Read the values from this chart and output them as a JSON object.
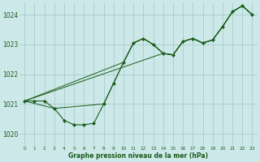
{
  "bg_color": "#cce8e8",
  "grid_color": "#aacccc",
  "line_color": "#1a5c1a",
  "marker_color": "#1a5c1a",
  "xlabel": "Graphe pression niveau de la mer (hPa)",
  "xlabel_color": "#1a5c1a",
  "ylim": [
    1019.6,
    1024.4
  ],
  "xlim": [
    -0.5,
    23.5
  ],
  "yticks": [
    1020,
    1021,
    1022,
    1023,
    1024
  ],
  "xticks": [
    0,
    1,
    2,
    3,
    4,
    5,
    6,
    7,
    8,
    9,
    10,
    11,
    12,
    13,
    14,
    15,
    16,
    17,
    18,
    19,
    20,
    21,
    22,
    23
  ],
  "main_x": [
    0,
    1,
    2,
    3,
    4,
    5,
    6,
    7,
    8,
    9,
    10,
    11,
    12,
    13,
    14,
    15,
    16,
    17,
    18,
    19,
    20,
    21,
    22,
    23
  ],
  "main_y": [
    1021.1,
    1021.1,
    1021.1,
    1020.85,
    1020.45,
    1020.3,
    1020.3,
    1020.35,
    1021.0,
    1021.7,
    1022.4,
    1023.05,
    1023.2,
    1023.0,
    1022.7,
    1022.65,
    1023.1,
    1023.2,
    1023.05,
    1023.15,
    1023.6,
    1024.1,
    1024.3,
    1024.0
  ],
  "line2_x": [
    0,
    3,
    8,
    10,
    11,
    12,
    13,
    14,
    15,
    16,
    17,
    18,
    19,
    20,
    21,
    22,
    23
  ],
  "line2_y": [
    1021.1,
    1020.85,
    1021.0,
    1022.4,
    1023.05,
    1023.2,
    1023.0,
    1022.7,
    1022.65,
    1023.1,
    1023.2,
    1023.05,
    1023.15,
    1023.6,
    1024.1,
    1024.3,
    1024.0
  ],
  "line3_x": [
    0,
    10,
    11,
    12,
    13,
    14,
    15,
    16,
    17,
    18,
    19,
    20,
    21,
    22,
    23
  ],
  "line3_y": [
    1021.1,
    1022.4,
    1023.05,
    1023.2,
    1023.0,
    1022.7,
    1022.65,
    1023.1,
    1023.2,
    1023.05,
    1023.15,
    1023.6,
    1024.1,
    1024.3,
    1024.0
  ],
  "line4_x": [
    0,
    14,
    15,
    16,
    17,
    18,
    19,
    20,
    21,
    22,
    23
  ],
  "line4_y": [
    1021.1,
    1022.7,
    1022.65,
    1023.1,
    1023.2,
    1023.05,
    1023.15,
    1023.6,
    1024.1,
    1024.3,
    1024.0
  ]
}
